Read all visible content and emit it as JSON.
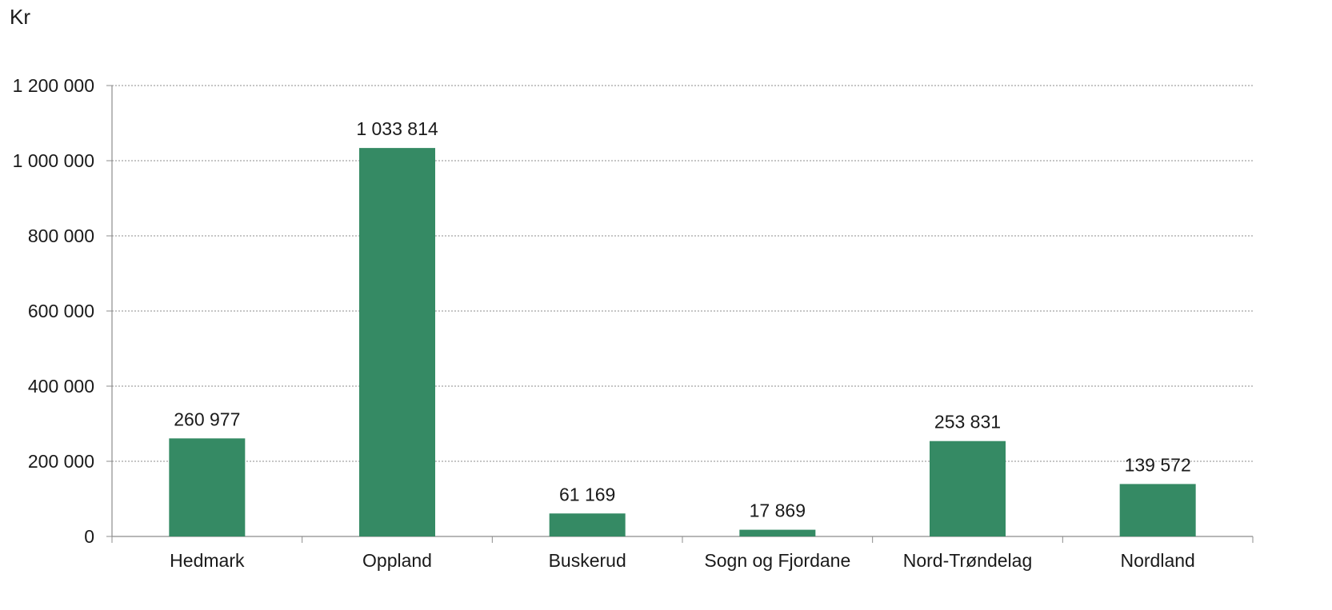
{
  "chart_data": {
    "type": "bar",
    "ylabel": "Kr",
    "categories": [
      "Hedmark",
      "Oppland",
      "Buskerud",
      "Sogn og Fjordane",
      "Nord-Trøndelag",
      "Nordland"
    ],
    "values": [
      260977,
      1033814,
      61169,
      17869,
      253831,
      139572
    ],
    "data_labels": [
      "260 977",
      "1 033 814",
      "61 169",
      "17 869",
      "253 831",
      "139 572"
    ],
    "yticks": [
      0,
      200000,
      400000,
      600000,
      800000,
      1000000,
      1200000
    ],
    "ytick_labels": [
      "0",
      "200 000",
      "400 000",
      "600 000",
      "800 000",
      "1 000 000",
      "1 200 000"
    ],
    "ylim": [
      0,
      1200000
    ],
    "grid": true,
    "legend": "none",
    "bar_color": "#358a64",
    "grid_color": "#8c8c8c",
    "axis_color": "#8c8c8c"
  }
}
